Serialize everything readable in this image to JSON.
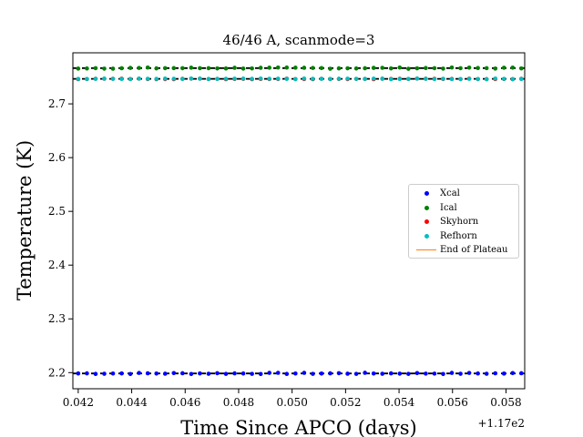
{
  "chart_data": {
    "type": "scatter",
    "title": "46/46 A, scanmode=3",
    "xlabel": "Time Since APCO (days)",
    "ylabel": "Temperature (K)",
    "x_offset_label": "+1.17e2",
    "xlim": [
      0.0418,
      0.0587
    ],
    "ylim": [
      2.17,
      2.795
    ],
    "xticks": [
      "0.042",
      "0.044",
      "0.046",
      "0.048",
      "0.050",
      "0.052",
      "0.054",
      "0.056",
      "0.058"
    ],
    "yticks": [
      "2.2",
      "2.3",
      "2.4",
      "2.5",
      "2.6",
      "2.7"
    ],
    "grid": false,
    "legend_position": "center-right",
    "series": [
      {
        "name": "Xcal",
        "color": "#0000ff",
        "x_start": 0.042,
        "x_end": 0.0587,
        "x_step": 0.000325,
        "y_mean": 2.1985,
        "y_jitter": 0.0012
      },
      {
        "name": "Ical",
        "color": "#008000",
        "x_start": 0.042,
        "x_end": 0.0587,
        "x_step": 0.000325,
        "y_mean": 2.7665,
        "y_jitter": 0.0012
      },
      {
        "name": "Skyhorn",
        "color": "#ff0000",
        "x_start": 0.042,
        "x_end": 0.0587,
        "x_step": 0.000325,
        "y_mean": 2.7465,
        "y_jitter": 0.0006
      },
      {
        "name": "Refhorn",
        "color": "#00bfbf",
        "x_start": 0.042,
        "x_end": 0.0587,
        "x_step": 0.000325,
        "y_mean": 2.7465,
        "y_jitter": 0.0006
      }
    ],
    "reference_lines": [
      2.1985,
      2.7465,
      2.7665
    ],
    "legend_extra": {
      "name": "End of Plateau",
      "color": "#ff7f0e"
    }
  }
}
